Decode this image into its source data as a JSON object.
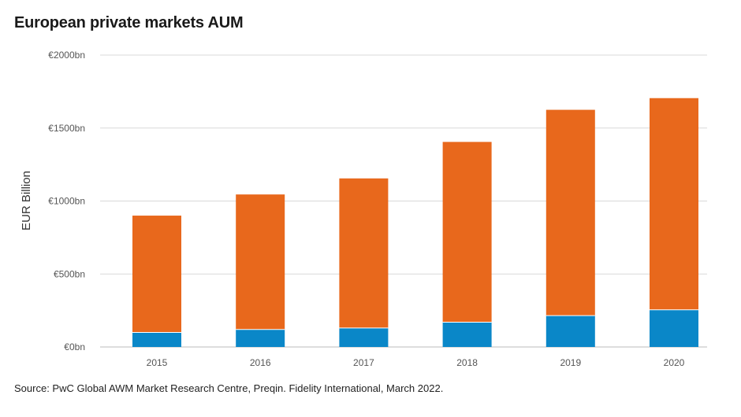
{
  "title": "European private markets AUM",
  "source": "Source: PwC Global AWM Market Research Centre, Preqin. Fidelity International, March 2022.",
  "colors": {
    "bottom_series": "#0a87c8",
    "top_series": "#e8681c",
    "grid": "#d9d9d9",
    "axis": "#bbbbbb"
  },
  "chart_data": {
    "type": "bar",
    "stacked": true,
    "categories": [
      "2015",
      "2016",
      "2017",
      "2018",
      "2019",
      "2020"
    ],
    "series": [
      {
        "values": [
          100,
          120,
          130,
          170,
          215,
          255
        ]
      },
      {
        "values": [
          800,
          925,
          1025,
          1235,
          1410,
          1450
        ]
      }
    ],
    "totals": [
      900,
      1045,
      1155,
      1405,
      1625,
      1705
    ],
    "ylabel": "EUR Billion",
    "ylim": [
      0,
      2000
    ],
    "y_ticks": [
      0,
      500,
      1000,
      1500,
      2000
    ],
    "y_tick_labels": [
      "€0bn",
      "€500bn",
      "€1000bn",
      "€1500bn",
      "€2000bn"
    ],
    "grid": true,
    "legend": "none"
  }
}
